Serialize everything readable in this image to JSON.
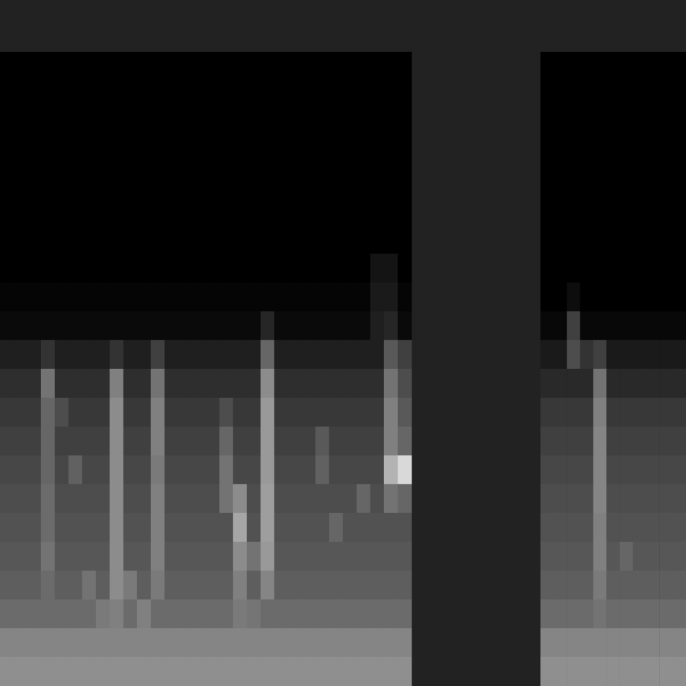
{
  "chart_data": [
    {
      "type": "heatmap",
      "tick_labels": false,
      "zlim": [
        0,
        100
      ],
      "cells": [
        [
          0,
          0,
          0,
          0,
          0,
          0,
          0,
          0,
          0,
          0,
          0,
          0,
          0,
          0,
          0,
          0,
          0,
          0,
          0,
          0,
          0,
          0,
          0,
          0,
          0,
          0,
          0,
          0,
          0,
          0
        ],
        [
          0,
          0,
          0,
          0,
          0,
          0,
          0,
          0,
          0,
          0,
          0,
          0,
          0,
          0,
          0,
          0,
          0,
          0,
          0,
          0,
          0,
          0,
          0,
          0,
          0,
          0,
          0,
          0,
          0,
          0
        ],
        [
          0,
          0,
          0,
          0,
          0,
          0,
          0,
          0,
          0,
          0,
          0,
          0,
          0,
          0,
          0,
          0,
          0,
          0,
          0,
          0,
          0,
          0,
          0,
          0,
          0,
          0,
          0,
          0,
          0,
          0
        ],
        [
          0,
          0,
          0,
          0,
          0,
          0,
          0,
          0,
          0,
          0,
          0,
          0,
          0,
          0,
          0,
          0,
          0,
          0,
          0,
          0,
          0,
          0,
          0,
          0,
          0,
          0,
          0,
          0,
          0,
          0
        ],
        [
          0,
          0,
          0,
          0,
          0,
          0,
          0,
          0,
          0,
          0,
          0,
          0,
          0,
          0,
          0,
          0,
          0,
          0,
          0,
          0,
          0,
          0,
          0,
          0,
          0,
          0,
          0,
          0,
          0,
          0
        ],
        [
          0,
          0,
          0,
          0,
          0,
          0,
          0,
          0,
          0,
          0,
          0,
          0,
          0,
          0,
          0,
          0,
          0,
          0,
          0,
          0,
          0,
          0,
          0,
          0,
          0,
          0,
          0,
          0,
          0,
          0
        ],
        [
          0,
          0,
          0,
          0,
          0,
          0,
          0,
          0,
          0,
          0,
          0,
          0,
          0,
          0,
          0,
          0,
          0,
          0,
          0,
          0,
          0,
          0,
          0,
          0,
          0,
          0,
          0,
          0,
          0,
          0
        ],
        [
          0,
          0,
          0,
          0,
          0,
          0,
          0,
          0,
          0,
          0,
          0,
          0,
          0,
          0,
          0,
          0,
          0,
          0,
          0,
          0,
          0,
          0,
          0,
          0,
          0,
          0,
          0,
          8,
          8,
          0
        ],
        [
          2,
          2,
          2,
          2,
          2,
          2,
          2,
          2,
          2,
          2,
          2,
          2,
          2,
          2,
          2,
          2,
          2,
          2,
          2,
          2,
          2,
          2,
          2,
          2,
          2,
          2,
          2,
          10,
          10,
          2
        ],
        [
          4,
          4,
          4,
          4,
          4,
          4,
          4,
          4,
          4,
          4,
          4,
          4,
          4,
          4,
          4,
          4,
          4,
          4,
          4,
          15,
          4,
          4,
          4,
          4,
          4,
          4,
          4,
          12,
          15,
          4
        ],
        [
          12,
          12,
          12,
          20,
          12,
          12,
          12,
          12,
          20,
          12,
          12,
          25,
          12,
          12,
          12,
          12,
          12,
          12,
          12,
          40,
          12,
          12,
          12,
          12,
          12,
          12,
          12,
          12,
          35,
          25
        ],
        [
          18,
          18,
          18,
          45,
          18,
          18,
          18,
          18,
          50,
          18,
          18,
          45,
          18,
          18,
          18,
          18,
          18,
          18,
          18,
          55,
          18,
          18,
          18,
          18,
          18,
          18,
          18,
          18,
          45,
          30
        ],
        [
          22,
          22,
          22,
          40,
          30,
          22,
          22,
          22,
          55,
          22,
          22,
          50,
          22,
          22,
          22,
          22,
          30,
          22,
          22,
          60,
          22,
          22,
          22,
          22,
          22,
          22,
          22,
          22,
          50,
          35
        ],
        [
          25,
          25,
          25,
          40,
          25,
          25,
          25,
          25,
          55,
          25,
          25,
          50,
          25,
          25,
          25,
          25,
          40,
          25,
          25,
          60,
          25,
          25,
          25,
          35,
          25,
          25,
          25,
          25,
          50,
          40
        ],
        [
          28,
          28,
          28,
          40,
          28,
          38,
          28,
          28,
          55,
          28,
          28,
          48,
          28,
          28,
          28,
          28,
          45,
          28,
          28,
          60,
          28,
          28,
          28,
          38,
          28,
          28,
          28,
          28,
          70,
          85
        ],
        [
          30,
          30,
          30,
          42,
          30,
          30,
          30,
          30,
          55,
          30,
          30,
          50,
          30,
          30,
          30,
          30,
          45,
          55,
          30,
          62,
          30,
          30,
          30,
          30,
          30,
          30,
          40,
          30,
          45,
          40
        ],
        [
          32,
          32,
          32,
          42,
          32,
          32,
          32,
          32,
          55,
          32,
          32,
          50,
          32,
          32,
          32,
          32,
          32,
          65,
          32,
          62,
          32,
          32,
          32,
          32,
          40,
          32,
          32,
          32,
          32,
          32
        ],
        [
          34,
          34,
          34,
          45,
          34,
          34,
          34,
          34,
          55,
          34,
          34,
          50,
          34,
          34,
          34,
          34,
          34,
          55,
          45,
          60,
          34,
          34,
          34,
          34,
          34,
          34,
          34,
          34,
          34,
          34
        ],
        [
          37,
          37,
          37,
          42,
          37,
          37,
          45,
          37,
          55,
          48,
          37,
          48,
          37,
          37,
          37,
          37,
          37,
          50,
          37,
          52,
          37,
          37,
          37,
          37,
          37,
          37,
          37,
          37,
          37,
          37
        ],
        [
          42,
          42,
          42,
          42,
          42,
          42,
          42,
          48,
          50,
          42,
          50,
          42,
          42,
          42,
          42,
          42,
          42,
          48,
          46,
          42,
          42,
          42,
          42,
          42,
          42,
          42,
          42,
          42,
          42,
          42
        ],
        [
          52,
          52,
          52,
          52,
          52,
          52,
          52,
          52,
          52,
          52,
          52,
          52,
          52,
          52,
          52,
          52,
          52,
          52,
          52,
          52,
          52,
          52,
          52,
          52,
          52,
          52,
          52,
          52,
          52,
          52
        ],
        [
          56,
          56,
          56,
          56,
          56,
          56,
          56,
          56,
          56,
          56,
          56,
          56,
          56,
          56,
          56,
          56,
          56,
          56,
          56,
          56,
          56,
          56,
          56,
          56,
          56,
          56,
          56,
          56,
          56,
          56
        ]
      ]
    },
    {
      "type": "heatmap",
      "tick_labels": false,
      "zlim": [
        0,
        100
      ],
      "cells": [
        [
          0,
          0,
          0,
          0,
          0,
          0,
          0,
          0,
          0,
          0,
          0
        ],
        [
          0,
          0,
          0,
          0,
          0,
          0,
          0,
          0,
          0,
          0,
          0
        ],
        [
          0,
          0,
          0,
          0,
          0,
          0,
          0,
          0,
          0,
          0,
          0
        ],
        [
          0,
          0,
          0,
          0,
          0,
          0,
          0,
          0,
          0,
          0,
          0
        ],
        [
          0,
          0,
          0,
          0,
          0,
          0,
          0,
          0,
          0,
          0,
          0
        ],
        [
          0,
          0,
          0,
          0,
          0,
          0,
          0,
          0,
          0,
          0,
          0
        ],
        [
          0,
          0,
          0,
          0,
          0,
          0,
          0,
          0,
          0,
          0,
          0
        ],
        [
          0,
          0,
          0,
          0,
          0,
          0,
          0,
          0,
          0,
          0,
          0
        ],
        [
          0,
          0,
          5,
          0,
          0,
          0,
          0,
          0,
          0,
          0,
          0
        ],
        [
          3,
          3,
          25,
          3,
          3,
          3,
          3,
          3,
          3,
          3,
          3
        ],
        [
          10,
          10,
          30,
          20,
          25,
          10,
          10,
          10,
          10,
          10,
          10
        ],
        [
          16,
          16,
          16,
          16,
          45,
          16,
          16,
          16,
          16,
          16,
          16
        ],
        [
          22,
          22,
          22,
          22,
          50,
          22,
          22,
          22,
          22,
          22,
          22
        ],
        [
          25,
          25,
          25,
          25,
          52,
          25,
          25,
          25,
          25,
          25,
          25
        ],
        [
          28,
          28,
          28,
          28,
          52,
          28,
          28,
          28,
          28,
          28,
          28
        ],
        [
          30,
          30,
          30,
          30,
          52,
          30,
          30,
          30,
          30,
          30,
          30
        ],
        [
          32,
          32,
          32,
          32,
          50,
          32,
          32,
          32,
          32,
          32,
          32
        ],
        [
          34,
          34,
          34,
          34,
          50,
          34,
          40,
          34,
          34,
          34,
          34
        ],
        [
          37,
          37,
          37,
          37,
          48,
          37,
          37,
          37,
          37,
          37,
          37
        ],
        [
          42,
          42,
          42,
          42,
          45,
          42,
          42,
          42,
          42,
          42,
          42
        ],
        [
          52,
          52,
          52,
          52,
          52,
          52,
          52,
          52,
          52,
          52,
          52
        ],
        [
          56,
          56,
          56,
          56,
          56,
          56,
          56,
          56,
          56,
          56,
          56
        ]
      ]
    }
  ]
}
